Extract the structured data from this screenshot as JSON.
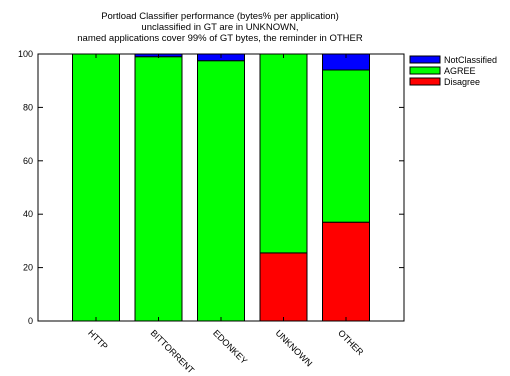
{
  "chart_data": {
    "type": "bar",
    "stacked": true,
    "title_lines": [
      "Portload Classifier performance (bytes% per application)",
      "unclassified in GT are in UNKNOWN,",
      "named applications cover 99% of GT bytes, the reminder in OTHER"
    ],
    "xlabel": "",
    "ylabel": "",
    "ylim": [
      0,
      100
    ],
    "yticks": [
      "0",
      "20",
      "40",
      "60",
      "80",
      "100"
    ],
    "categories": [
      "HTTP",
      "BITTORRENT",
      "EDONKEY",
      "UNKNOWN",
      "OTHER"
    ],
    "series": [
      {
        "name": "Disagree",
        "color": "#ff0000",
        "values": [
          0,
          0,
          0,
          25.5,
          37
        ]
      },
      {
        "name": "AGREE",
        "color": "#00ff00",
        "values": [
          100,
          99,
          97.5,
          74.5,
          57
        ]
      },
      {
        "name": "NotClassified",
        "color": "#0000ff",
        "values": [
          0,
          1,
          2.5,
          0,
          6
        ]
      }
    ],
    "legend_order": [
      "NotClassified",
      "AGREE",
      "Disagree"
    ],
    "legend_position": "top-right, outside plot",
    "grid": false
  }
}
